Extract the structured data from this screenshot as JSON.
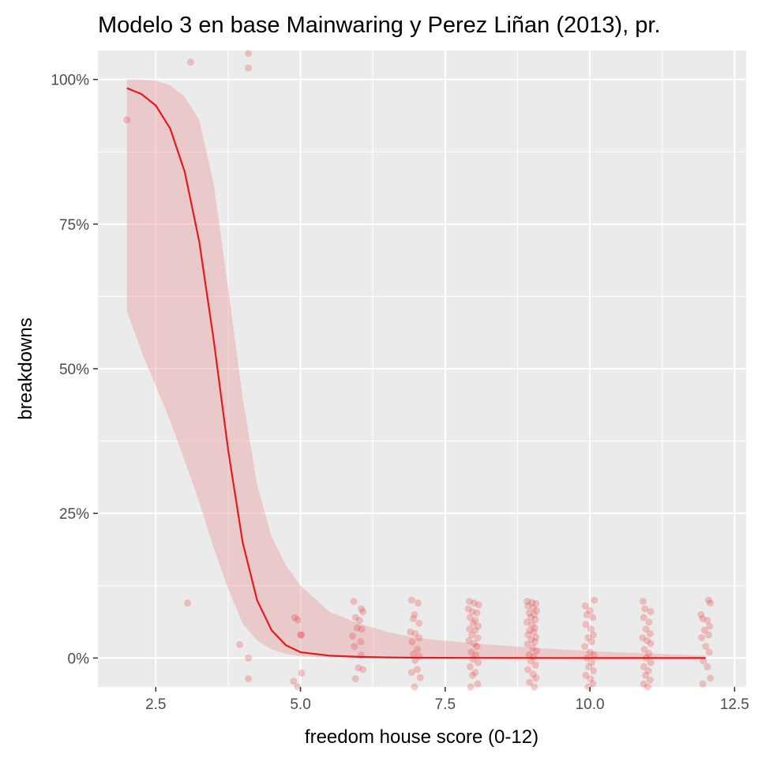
{
  "chart_data": {
    "type": "scatter",
    "title": "Modelo 3 en base Mainwaring y Perez Liñan (2013), pr.",
    "xlabel": "freedom house score (0-12)",
    "ylabel": "breakdowns",
    "xlim": [
      1.5,
      12.7
    ],
    "ylim": [
      -0.05,
      1.05
    ],
    "x_ticks": [
      2.5,
      5.0,
      7.5,
      10.0,
      12.5
    ],
    "x_tick_labels": [
      "2.5",
      "5.0",
      "7.5",
      "10.0",
      "12.5"
    ],
    "y_ticks": [
      0,
      0.25,
      0.5,
      0.75,
      1.0
    ],
    "y_tick_labels": [
      "0%",
      "25%",
      "50%",
      "75%",
      "100%"
    ],
    "grid": true,
    "legend": "none",
    "colors": {
      "panel": "#ebebeb",
      "grid": "#ffffff",
      "fit_line": "#e41a1c",
      "ribbon": "#e8a0a4",
      "points": "#e41a1c"
    },
    "fit": {
      "x": [
        2.0,
        2.25,
        2.5,
        2.75,
        3.0,
        3.25,
        3.5,
        3.75,
        4.0,
        4.25,
        4.5,
        4.75,
        5.0,
        5.5,
        6.0,
        6.5,
        7.0,
        8.0,
        9.0,
        10.0,
        11.0,
        12.0
      ],
      "y": [
        0.985,
        0.975,
        0.955,
        0.915,
        0.84,
        0.72,
        0.55,
        0.36,
        0.2,
        0.1,
        0.048,
        0.022,
        0.01,
        0.004,
        0.002,
        0.001,
        0.0005,
        0.0002,
        0.0001,
        0.0,
        0.0,
        0.0
      ],
      "lower": [
        0.6,
        0.53,
        0.47,
        0.41,
        0.34,
        0.27,
        0.19,
        0.12,
        0.06,
        0.03,
        0.015,
        0.007,
        0.003,
        0.001,
        0.0005,
        0.0002,
        0.0001,
        0.0,
        0.0,
        0.0,
        0.0,
        0.0
      ],
      "upper": [
        1.0,
        1.0,
        0.998,
        0.99,
        0.97,
        0.93,
        0.82,
        0.64,
        0.45,
        0.3,
        0.21,
        0.16,
        0.125,
        0.08,
        0.06,
        0.045,
        0.035,
        0.025,
        0.018,
        0.012,
        0.008,
        0.004
      ]
    },
    "points": [
      [
        2.0,
        0.93
      ],
      [
        3.1,
        1.03
      ],
      [
        4.1,
        1.045
      ],
      [
        4.1,
        1.02
      ],
      [
        3.05,
        0.095
      ],
      [
        3.95,
        0.023
      ],
      [
        4.1,
        0.0
      ],
      [
        4.1,
        -0.036
      ],
      [
        4.9,
        0.07
      ],
      [
        4.95,
        0.066
      ],
      [
        5.0,
        0.04
      ],
      [
        5.02,
        0.04
      ],
      [
        4.88,
        -0.04
      ],
      [
        4.95,
        -0.05
      ],
      [
        5.02,
        -0.026
      ],
      [
        5.92,
        0.098
      ],
      [
        6.05,
        0.085
      ],
      [
        6.08,
        0.08
      ],
      [
        5.95,
        0.07
      ],
      [
        6.02,
        0.065
      ],
      [
        5.98,
        0.052
      ],
      [
        6.06,
        0.05
      ],
      [
        5.9,
        0.038
      ],
      [
        6.04,
        0.028
      ],
      [
        5.93,
        0.02
      ],
      [
        6.05,
        0.005
      ],
      [
        6.0,
        -0.017
      ],
      [
        5.95,
        -0.036
      ],
      [
        6.08,
        -0.02
      ],
      [
        6.92,
        0.1
      ],
      [
        6.97,
        0.075
      ],
      [
        7.03,
        0.095
      ],
      [
        6.95,
        0.068
      ],
      [
        7.05,
        0.06
      ],
      [
        6.9,
        0.045
      ],
      [
        6.98,
        0.042
      ],
      [
        7.05,
        0.035
      ],
      [
        6.93,
        0.028
      ],
      [
        7.02,
        0.015
      ],
      [
        6.95,
        0.007
      ],
      [
        7.05,
        0.003
      ],
      [
        6.98,
        -0.004
      ],
      [
        7.02,
        -0.02
      ],
      [
        6.92,
        -0.025
      ],
      [
        7.07,
        -0.034
      ],
      [
        6.97,
        -0.05
      ],
      [
        7.92,
        0.098
      ],
      [
        8.0,
        0.095
      ],
      [
        8.08,
        0.092
      ],
      [
        7.9,
        0.085
      ],
      [
        7.97,
        0.08
      ],
      [
        8.05,
        0.078
      ],
      [
        7.93,
        0.07
      ],
      [
        8.02,
        0.065
      ],
      [
        7.98,
        0.06
      ],
      [
        8.07,
        0.055
      ],
      [
        7.92,
        0.05
      ],
      [
        8.02,
        0.048
      ],
      [
        7.96,
        0.04
      ],
      [
        8.06,
        0.035
      ],
      [
        7.91,
        0.03
      ],
      [
        8.0,
        0.025
      ],
      [
        8.05,
        0.02
      ],
      [
        7.95,
        0.01
      ],
      [
        8.03,
        0.005
      ],
      [
        7.98,
        -0.002
      ],
      [
        8.07,
        -0.008
      ],
      [
        7.93,
        -0.015
      ],
      [
        8.02,
        -0.025
      ],
      [
        7.97,
        -0.03
      ],
      [
        8.06,
        -0.045
      ],
      [
        7.94,
        -0.05
      ],
      [
        8.92,
        0.098
      ],
      [
        9.0,
        0.096
      ],
      [
        9.07,
        0.094
      ],
      [
        8.93,
        0.09
      ],
      [
        9.02,
        0.086
      ],
      [
        9.08,
        0.082
      ],
      [
        8.95,
        0.078
      ],
      [
        9.04,
        0.075
      ],
      [
        8.98,
        0.07
      ],
      [
        9.06,
        0.066
      ],
      [
        8.91,
        0.062
      ],
      [
        9.0,
        0.058
      ],
      [
        9.05,
        0.052
      ],
      [
        8.96,
        0.048
      ],
      [
        9.03,
        0.045
      ],
      [
        8.93,
        0.04
      ],
      [
        9.07,
        0.036
      ],
      [
        8.99,
        0.032
      ],
      [
        9.05,
        0.028
      ],
      [
        8.92,
        0.024
      ],
      [
        9.01,
        0.018
      ],
      [
        9.08,
        0.012
      ],
      [
        8.95,
        0.006
      ],
      [
        9.03,
        0.002
      ],
      [
        8.98,
        -0.005
      ],
      [
        9.06,
        -0.012
      ],
      [
        8.93,
        -0.02
      ],
      [
        9.02,
        -0.028
      ],
      [
        9.07,
        -0.035
      ],
      [
        8.96,
        -0.042
      ],
      [
        9.04,
        -0.05
      ],
      [
        9.92,
        0.09
      ],
      [
        10.08,
        0.1
      ],
      [
        10.0,
        0.082
      ],
      [
        9.95,
        0.075
      ],
      [
        10.05,
        0.07
      ],
      [
        9.93,
        0.058
      ],
      [
        10.02,
        0.05
      ],
      [
        10.06,
        0.04
      ],
      [
        9.97,
        0.035
      ],
      [
        10.03,
        0.028
      ],
      [
        9.91,
        0.02
      ],
      [
        10.0,
        0.01
      ],
      [
        10.07,
        0.005
      ],
      [
        9.95,
        0.0
      ],
      [
        10.03,
        -0.008
      ],
      [
        9.98,
        -0.015
      ],
      [
        10.06,
        -0.022
      ],
      [
        9.93,
        -0.03
      ],
      [
        10.01,
        -0.036
      ],
      [
        10.05,
        -0.044
      ],
      [
        9.97,
        -0.05
      ],
      [
        10.92,
        0.098
      ],
      [
        10.95,
        0.085
      ],
      [
        11.05,
        0.08
      ],
      [
        10.93,
        0.07
      ],
      [
        11.02,
        0.062
      ],
      [
        10.97,
        0.05
      ],
      [
        11.04,
        0.042
      ],
      [
        10.91,
        0.035
      ],
      [
        10.99,
        0.03
      ],
      [
        11.05,
        0.025
      ],
      [
        10.94,
        0.015
      ],
      [
        11.02,
        0.008
      ],
      [
        10.97,
        0.0
      ],
      [
        11.05,
        -0.008
      ],
      [
        10.93,
        -0.015
      ],
      [
        11.01,
        -0.022
      ],
      [
        10.96,
        -0.03
      ],
      [
        11.04,
        -0.038
      ],
      [
        10.93,
        -0.045
      ],
      [
        11.0,
        -0.05
      ],
      [
        11.92,
        0.075
      ],
      [
        12.05,
        0.1
      ],
      [
        12.08,
        0.095
      ],
      [
        11.95,
        0.068
      ],
      [
        12.03,
        0.065
      ],
      [
        12.07,
        0.055
      ],
      [
        11.98,
        0.048
      ],
      [
        12.05,
        0.04
      ],
      [
        11.93,
        0.035
      ],
      [
        12.0,
        0.02
      ],
      [
        12.06,
        0.01
      ],
      [
        11.96,
        -0.005
      ],
      [
        12.03,
        -0.015
      ],
      [
        12.08,
        -0.035
      ],
      [
        11.95,
        -0.045
      ]
    ]
  }
}
